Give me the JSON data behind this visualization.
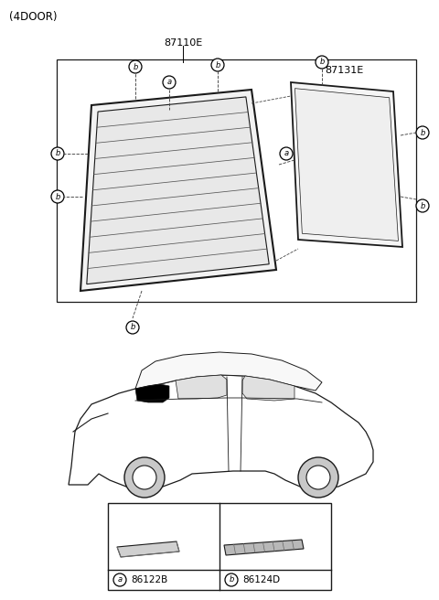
{
  "title": "(4DOOR)",
  "bg_color": "#ffffff",
  "label_87110E": "87110E",
  "label_87131E": "87131E",
  "label_a": "a",
  "label_b": "b",
  "part_a_code": "86122B",
  "part_b_code": "86124D",
  "text_color": "#000000",
  "line_color": "#1a1a1a",
  "dashed_color": "#444444",
  "car_fill": "#ffffff",
  "rear_window_fill": "#000000",
  "glass_border": "#333333",
  "n_defroster_lines": 10
}
